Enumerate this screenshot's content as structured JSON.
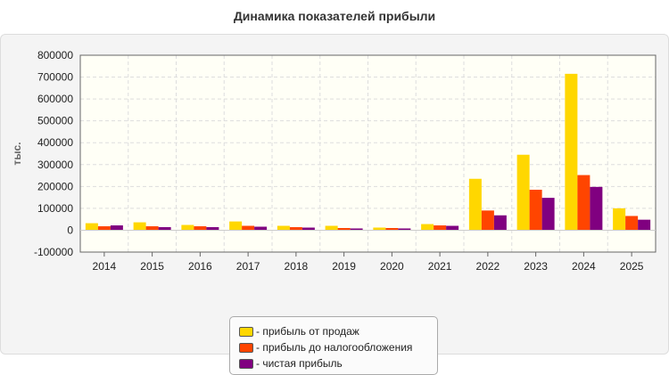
{
  "chart_data": {
    "type": "bar",
    "title": "Динамика показателей прибыли",
    "ylabel": "тыс.",
    "xlabel": "",
    "categories": [
      "2014",
      "2015",
      "2016",
      "2017",
      "2018",
      "2019",
      "2020",
      "2021",
      "2022",
      "2023",
      "2024",
      "2025"
    ],
    "series": [
      {
        "name": "- прибыль от продаж",
        "color": "#ffd700",
        "values": [
          32000,
          36000,
          24000,
          40000,
          20000,
          20000,
          12000,
          28000,
          235000,
          345000,
          715000,
          100000
        ]
      },
      {
        "name": "- прибыль до налогообложения",
        "color": "#ff4500",
        "values": [
          18000,
          18000,
          18000,
          20000,
          14000,
          10000,
          10000,
          22000,
          90000,
          185000,
          252000,
          65000
        ]
      },
      {
        "name": "- чистая прибыль",
        "color": "#800080",
        "values": [
          22000,
          14000,
          14000,
          16000,
          12000,
          8000,
          8000,
          20000,
          68000,
          148000,
          198000,
          48000
        ]
      }
    ],
    "ylim": [
      -100000,
      800000
    ],
    "yticks": [
      "-100000",
      "0",
      "100000",
      "200000",
      "300000",
      "400000",
      "500000",
      "600000",
      "700000",
      "800000"
    ],
    "grid": true,
    "legend_position": "bottom"
  }
}
